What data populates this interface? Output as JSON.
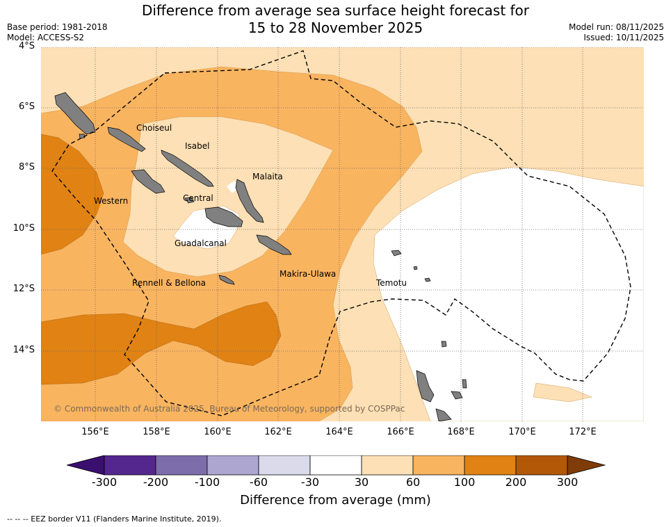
{
  "title": {
    "line1": "Difference from average sea surface height forecast for",
    "line2": "15 to 28 November 2025"
  },
  "meta": {
    "base_period": "Base period: 1981-2018",
    "model": "Model: ACCESS-S2",
    "model_run": "Model run: 08/11/2025",
    "issued": "Issued: 10/11/2025"
  },
  "axes": {
    "lat_labels": [
      "4°S",
      "6°S",
      "8°S",
      "10°S",
      "12°S",
      "14°S"
    ],
    "lon_labels": [
      "156°E",
      "158°E",
      "160°E",
      "162°E",
      "164°E",
      "166°E",
      "168°E",
      "170°E",
      "172°E"
    ]
  },
  "regions": {
    "choiseul": "Choiseul",
    "isabel": "Isabel",
    "malaita": "Malaita",
    "western": "Western",
    "central": "Central",
    "guadalcanal": "Guadalcanal",
    "rennell": "Rennell & Bellona",
    "makira": "Makira-Ulawa",
    "temotu": "Temotu"
  },
  "copyright": "© Commonwealth of Australia 2025, Bureau of Meteorology, supported by COSPPac",
  "colorbar": {
    "ticks": [
      "-300",
      "-200",
      "-100",
      "-60",
      "-30",
      "30",
      "60",
      "100",
      "200",
      "300"
    ],
    "colors": [
      "#3b0f6f",
      "#54278f",
      "#7d6eab",
      "#ada6d0",
      "#dadaeb",
      "#ffffff",
      "#fde0b5",
      "#f9b460",
      "#e08214",
      "#b35806",
      "#7f3b08"
    ],
    "title": "Difference from average (mm)"
  },
  "footnote": "--  --  -- EEZ border V11 (Flanders Marine Institute, 2019)."
}
